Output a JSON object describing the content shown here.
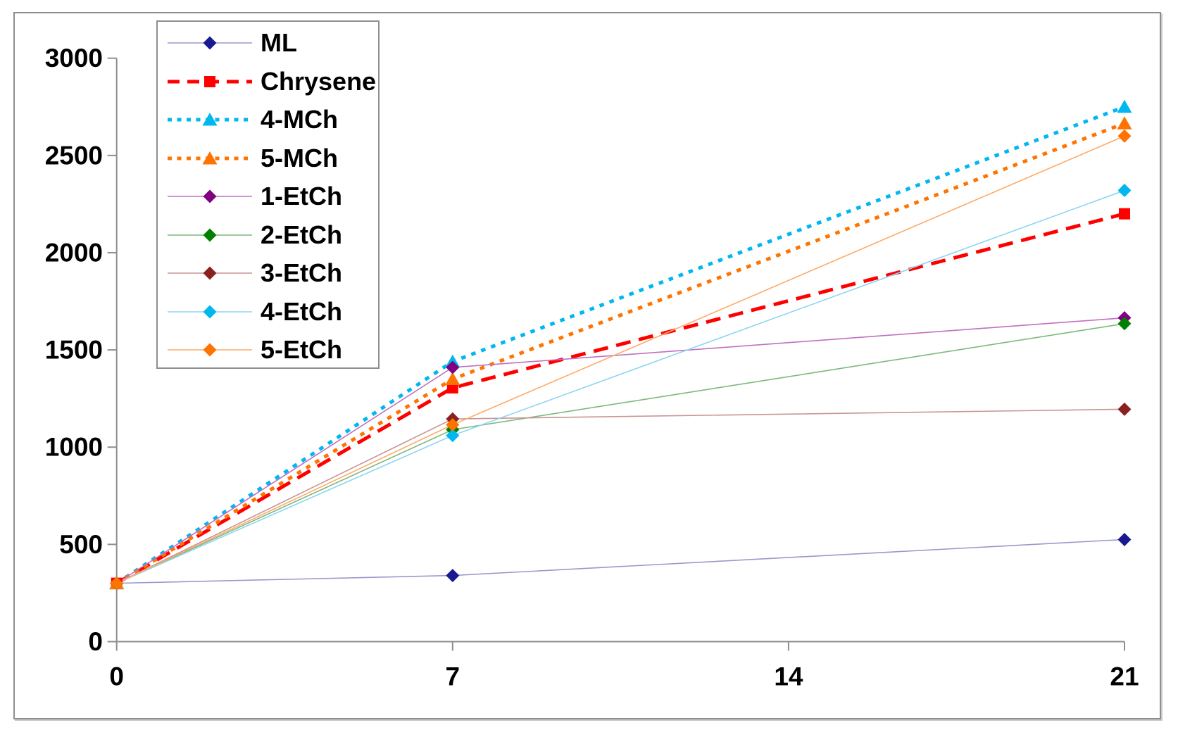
{
  "chart_data": {
    "type": "line",
    "title": "",
    "xlabel": "",
    "ylabel": "",
    "grid": false,
    "legend_position": "top-left",
    "x": [
      0,
      7,
      21
    ],
    "x_ticks": [
      0,
      7,
      14,
      21
    ],
    "y_ticks": [
      0,
      500,
      1000,
      1500,
      2000,
      2500,
      3000
    ],
    "xlim": [
      0,
      21
    ],
    "ylim": [
      0,
      3000
    ],
    "axis_color": "#8e8e8e",
    "text_color": "#000000",
    "series": [
      {
        "name": "ML",
        "marker": "diamond",
        "marker_color": "#1a1a90",
        "line_color": "#9999cc",
        "line_style": "solid",
        "line_width": 1.6,
        "values": [
          300,
          340,
          525
        ]
      },
      {
        "name": "Chrysene",
        "marker": "square",
        "marker_color": "#ff0000",
        "line_color": "#ff0000",
        "line_style": "dashed",
        "line_width": 5,
        "values": [
          300,
          1305,
          2200
        ]
      },
      {
        "name": "4-MCh",
        "marker": "triangle",
        "marker_color": "#00b7ef",
        "line_color": "#00b7ef",
        "line_style": "dotted",
        "line_width": 5,
        "values": [
          300,
          1440,
          2750
        ]
      },
      {
        "name": "5-MCh",
        "marker": "triangle",
        "marker_color": "#ff7300",
        "line_color": "#ff7300",
        "line_style": "dotted",
        "line_width": 5,
        "values": [
          300,
          1350,
          2665
        ]
      },
      {
        "name": "1-EtCh",
        "marker": "diamond",
        "marker_color": "#800080",
        "line_color": "#c070c0",
        "line_style": "solid",
        "line_width": 1.6,
        "values": [
          300,
          1410,
          1665
        ]
      },
      {
        "name": "2-EtCh",
        "marker": "diamond",
        "marker_color": "#008000",
        "line_color": "#7cb87c",
        "line_style": "solid",
        "line_width": 1.6,
        "values": [
          300,
          1090,
          1635
        ]
      },
      {
        "name": "3-EtCh",
        "marker": "diamond",
        "marker_color": "#8b2020",
        "line_color": "#c89494",
        "line_style": "solid",
        "line_width": 1.6,
        "values": [
          300,
          1145,
          1195
        ]
      },
      {
        "name": "4-EtCh",
        "marker": "diamond",
        "marker_color": "#00b7ef",
        "line_color": "#8cd6f2",
        "line_style": "solid",
        "line_width": 1.6,
        "values": [
          300,
          1060,
          2320
        ]
      },
      {
        "name": "5-EtCh",
        "marker": "diamond",
        "marker_color": "#ff7300",
        "line_color": "#ffaa66",
        "line_style": "solid",
        "line_width": 1.6,
        "values": [
          300,
          1115,
          2600
        ]
      }
    ]
  }
}
